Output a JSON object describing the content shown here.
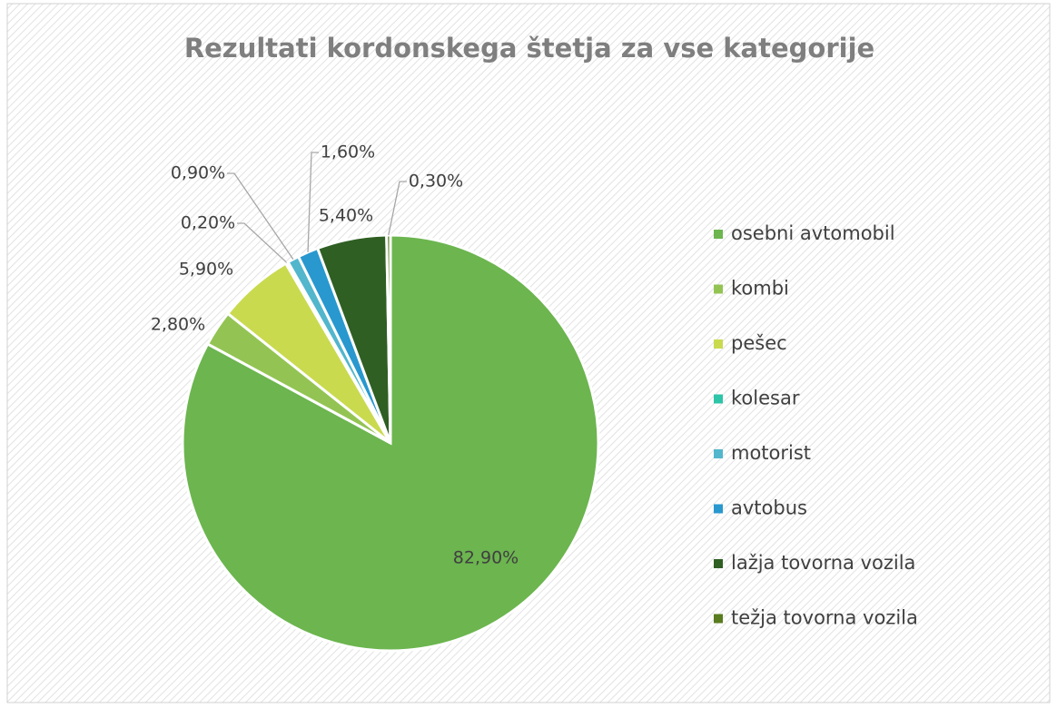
{
  "chart_data": {
    "type": "pie",
    "title": "Rezultati kordonskega štetja za vse kategorije",
    "categories": [
      "osebni avtomobil",
      "kombi",
      "pešec",
      "kolesar",
      "motorist",
      "avtobus",
      "lažja tovorna vozila",
      "težja tovorna vozila"
    ],
    "values": [
      82.9,
      2.8,
      5.9,
      0.2,
      0.9,
      1.6,
      5.4,
      0.3
    ],
    "value_labels": [
      "82,90%",
      "2,80%",
      "5,90%",
      "0,20%",
      "0,90%",
      "1,60%",
      "5,40%",
      "0,30%"
    ],
    "colors": [
      "#6cb54f",
      "#93c453",
      "#c9da4f",
      "#2ec4a8",
      "#52b6cc",
      "#2898cf",
      "#2f5f23",
      "#587c1f"
    ],
    "legend": "right"
  }
}
